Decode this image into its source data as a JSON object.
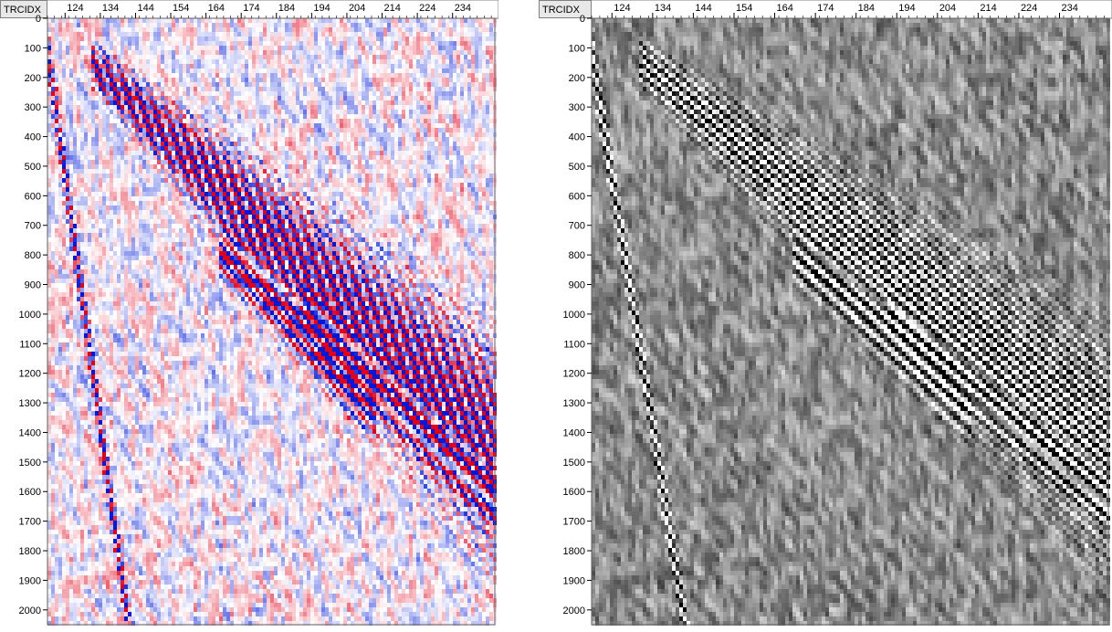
{
  "chart_data": [
    {
      "type": "heatmap",
      "name": "",
      "colormap": "red-white-blue",
      "colors": {
        "positive": "#e0001a",
        "negative": "#0018d8",
        "zero": "#ffffff"
      },
      "corner_label": "TRCIDX",
      "x_ticks": [
        "124",
        "134",
        "144",
        "154",
        "164",
        "174",
        "184",
        "194",
        "204",
        "214",
        "224",
        "234"
      ],
      "y_ticks": [
        "0",
        "100",
        "200",
        "300",
        "400",
        "500",
        "600",
        "700",
        "800",
        "900",
        "1000",
        "1100",
        "1200",
        "1300",
        "1400",
        "1500",
        "1600",
        "1700",
        "1800",
        "1900",
        "2000"
      ],
      "xlim": [
        119,
        246
      ],
      "ylim": [
        0,
        2050
      ],
      "events": [
        {
          "x": [
            133,
            246
          ],
          "y": [
            170,
            1470
          ]
        },
        {
          "x": [
            194,
            246
          ],
          "y": [
            1000,
            1620
          ]
        },
        {
          "x": [
            120,
            142
          ],
          "y": [
            200,
            2050
          ]
        },
        {
          "x": [
            170,
            210
          ],
          "y": [
            800,
            1300
          ]
        }
      ]
    },
    {
      "type": "heatmap",
      "name": "",
      "colormap": "grayscale",
      "colors": {
        "positive": "#000000",
        "negative": "#ffffff",
        "zero": "#8c8c8c"
      },
      "corner_label": "TRCIDX",
      "x_ticks": [
        "124",
        "134",
        "144",
        "154",
        "164",
        "174",
        "184",
        "194",
        "204",
        "214",
        "224",
        "234"
      ],
      "y_ticks": [
        "0",
        "100",
        "200",
        "300",
        "400",
        "500",
        "600",
        "700",
        "800",
        "900",
        "1000",
        "1100",
        "1200",
        "1300",
        "1400",
        "1500",
        "1600",
        "1700",
        "1800",
        "1900",
        "2000"
      ],
      "xlim": [
        119,
        246
      ],
      "ylim": [
        0,
        2050
      ],
      "events": [
        {
          "x": [
            133,
            246
          ],
          "y": [
            170,
            1470
          ]
        },
        {
          "x": [
            194,
            246
          ],
          "y": [
            1000,
            1620
          ]
        },
        {
          "x": [
            120,
            142
          ],
          "y": [
            200,
            2050
          ]
        },
        {
          "x": [
            170,
            210
          ],
          "y": [
            800,
            1300
          ]
        }
      ]
    }
  ]
}
